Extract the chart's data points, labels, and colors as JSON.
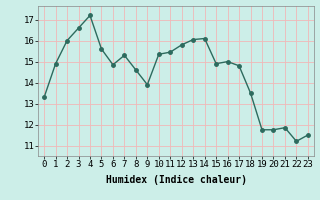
{
  "x": [
    0,
    1,
    2,
    3,
    4,
    5,
    6,
    7,
    8,
    9,
    10,
    11,
    12,
    13,
    14,
    15,
    16,
    17,
    18,
    19,
    20,
    21,
    22,
    23
  ],
  "y": [
    13.3,
    14.9,
    16.0,
    16.6,
    17.2,
    15.6,
    14.85,
    15.3,
    14.6,
    13.9,
    15.35,
    15.45,
    15.8,
    16.05,
    16.1,
    14.9,
    15.0,
    14.8,
    13.5,
    11.75,
    11.75,
    11.85,
    11.2,
    11.5
  ],
  "line_color": "#2d6b5e",
  "marker": "o",
  "marker_size": 2.5,
  "linewidth": 1.0,
  "bg_color": "#cceee8",
  "grid_color": "#f0b8b8",
  "xlabel": "Humidex (Indice chaleur)",
  "xlabel_fontsize": 7,
  "tick_fontsize": 6.5,
  "yticks": [
    11,
    12,
    13,
    14,
    15,
    16,
    17
  ],
  "ylim": [
    10.5,
    17.65
  ],
  "xlim": [
    -0.5,
    23.5
  ],
  "xticks": [
    0,
    1,
    2,
    3,
    4,
    5,
    6,
    7,
    8,
    9,
    10,
    11,
    12,
    13,
    14,
    15,
    16,
    17,
    18,
    19,
    20,
    21,
    22,
    23
  ]
}
